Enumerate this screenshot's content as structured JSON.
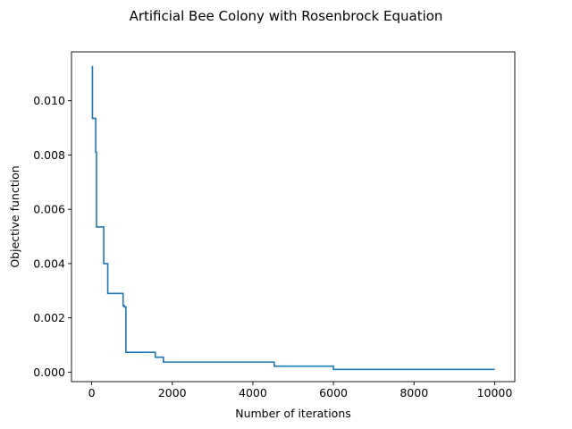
{
  "chart_data": {
    "type": "line",
    "title": "Artificial Bee Colony with Rosenbrock Equation",
    "xlabel": "Number of iterations",
    "ylabel": "Objective function",
    "xlim": [
      -500,
      10500
    ],
    "ylim": [
      -0.00035,
      0.0118
    ],
    "x_ticks": [
      0,
      2000,
      4000,
      6000,
      8000,
      10000
    ],
    "x_tick_labels": [
      "0",
      "2000",
      "4000",
      "6000",
      "8000",
      "10000"
    ],
    "y_ticks": [
      0.0,
      0.002,
      0.004,
      0.006,
      0.008,
      0.01
    ],
    "y_tick_labels": [
      "0.000",
      "0.002",
      "0.004",
      "0.006",
      "0.008",
      "0.010"
    ],
    "grid": false,
    "legend": "none",
    "line_color": "#1f77b4",
    "series": [
      {
        "step": "post",
        "x": [
          0,
          20,
          100,
          120,
          300,
          400,
          780,
          810,
          850,
          1580,
          1780,
          4530,
          6000,
          10000
        ],
        "y": [
          0.01125,
          0.00935,
          0.0081,
          0.00535,
          0.004,
          0.0029,
          0.00245,
          0.0024,
          0.00073,
          0.00055,
          0.00037,
          0.00022,
          0.0001,
          0.0001
        ]
      }
    ]
  }
}
